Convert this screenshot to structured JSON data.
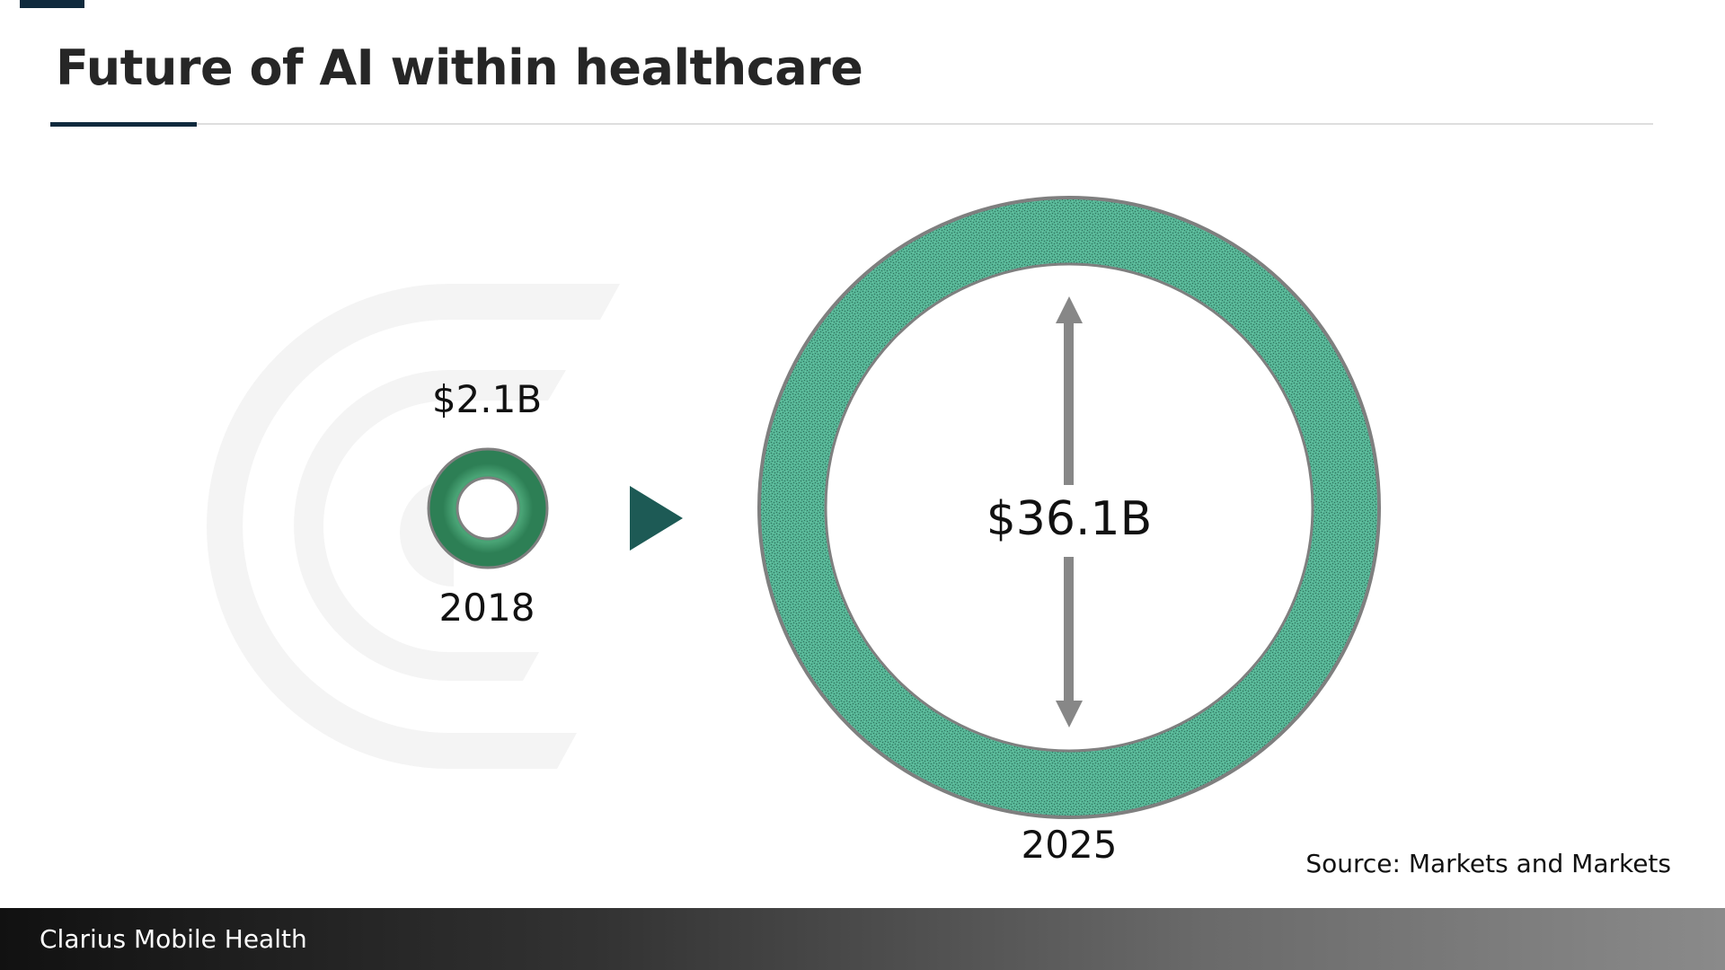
{
  "slide": {
    "title": "Future of AI within healthcare",
    "source": "Source: Markets and Markets",
    "footer": "Clarius Mobile Health"
  },
  "market": {
    "from": {
      "value": "$2.1B",
      "year": "2018"
    },
    "to": {
      "value": "$36.1B",
      "year": "2025"
    }
  },
  "icons": {
    "arrow": "play-triangle-icon",
    "dimension": "double-headed-arrow-icon",
    "watermark": "brand-c-arcs-logo"
  },
  "colors": {
    "accent_dark": "#0f2a3d",
    "ring_green": "#3d9a6e",
    "ring_teal": "#4fb89a",
    "arrow_teal": "#1d5a55",
    "ring_outline": "#7f7f7f",
    "watermark_gray": "#f4f4f4"
  }
}
